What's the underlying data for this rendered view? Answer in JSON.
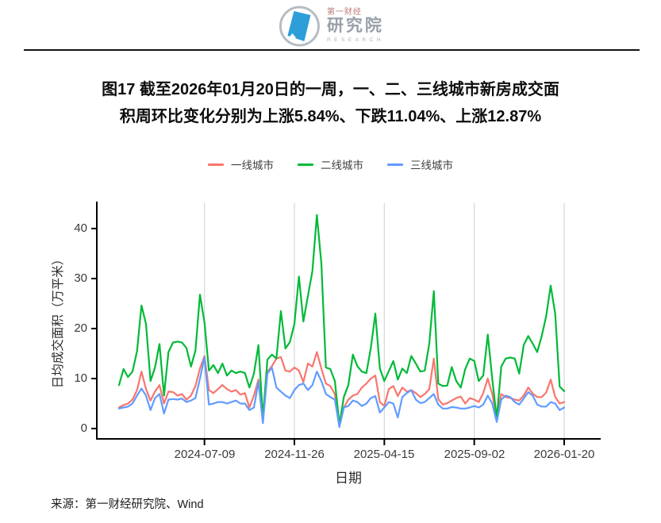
{
  "header": {
    "brand_cn_small": "第一财经",
    "brand_cn_large": "研究院",
    "brand_en": "RESEARCH"
  },
  "title": {
    "line1": "图17 截至2026年01月20日的一周，一、二、三线城市新房成交面",
    "line2": "积周环比变化分别为上涨5.84%、下跌11.04%、上涨12.87%"
  },
  "footer": {
    "source": "来源：第一财经研究院、Wind"
  },
  "chart_data": {
    "type": "line",
    "title": "截至2026年01月20日的一周，一、二、三线城市新房成交面积周环比变化分别为上涨5.84%、下跌11.04%、上涨12.87%",
    "xlabel": "日期",
    "ylabel": "日均成交面积（万平米）",
    "x_unit": "week",
    "x_ticks": [
      "2024-07-09",
      "2024-11-26",
      "2025-04-15",
      "2025-09-02",
      "2026-01-20"
    ],
    "x_tick_indices": [
      19,
      39,
      59,
      79,
      99
    ],
    "y_ticks": [
      0,
      10,
      20,
      30,
      40
    ],
    "ylim": [
      0,
      45
    ],
    "grid": "vertical-only",
    "legend_position": "top",
    "weekly_change": {
      "一线城市": "+5.84%",
      "二线城市": "-11.04%",
      "三线城市": "+12.87%"
    },
    "series": [
      {
        "name": "一线城市",
        "color": "#F8766D",
        "values": [
          4.2,
          4.7,
          5.0,
          5.8,
          7.7,
          11.4,
          7.9,
          5.6,
          7.4,
          8.7,
          5.0,
          7.4,
          7.3,
          6.6,
          6.9,
          5.8,
          6.6,
          8.5,
          12.0,
          14.5,
          7.7,
          7.1,
          7.9,
          8.7,
          7.9,
          7.4,
          7.7,
          6.8,
          7.1,
          4.2,
          6.6,
          9.8,
          1.5,
          11.4,
          12.5,
          14.0,
          14.3,
          11.6,
          11.4,
          12.2,
          11.6,
          9.3,
          13.0,
          12.4,
          15.3,
          12.0,
          9.0,
          8.5,
          6.9,
          0.5,
          4.2,
          5.8,
          6.6,
          6.9,
          8.2,
          9.0,
          10.0,
          10.6,
          5.3,
          4.5,
          7.9,
          8.5,
          6.5,
          8.2,
          7.4,
          7.7,
          7.1,
          6.3,
          6.9,
          7.9,
          14.0,
          5.9,
          4.8,
          5.1,
          5.6,
          6.1,
          6.4,
          5.0,
          6.1,
          5.8,
          5.3,
          7.1,
          10.0,
          6.9,
          2.0,
          6.9,
          6.3,
          6.1,
          5.8,
          5.6,
          6.6,
          8.2,
          7.0,
          6.3,
          6.3,
          7.2,
          9.8,
          6.3,
          5.0,
          5.3
        ]
      },
      {
        "name": "二线城市",
        "color": "#00BA38",
        "values": [
          8.7,
          11.9,
          10.3,
          11.4,
          15.5,
          24.6,
          20.9,
          9.5,
          12.2,
          16.9,
          6.6,
          15.3,
          17.2,
          17.4,
          17.2,
          16.1,
          12.4,
          15.6,
          26.8,
          21.2,
          11.6,
          12.7,
          11.1,
          13.0,
          10.6,
          11.6,
          11.1,
          11.4,
          11.1,
          8.2,
          11.0,
          16.7,
          2.1,
          13.8,
          14.8,
          14.0,
          23.5,
          16.0,
          17.3,
          20.9,
          30.4,
          21.4,
          26.5,
          31.5,
          42.7,
          33.0,
          12.2,
          11.9,
          9.5,
          0.8,
          6.3,
          8.7,
          14.8,
          12.5,
          11.4,
          11.1,
          16.1,
          23.0,
          12.0,
          9.5,
          11.5,
          13.5,
          9.8,
          12.0,
          11.1,
          14.5,
          13.0,
          11.4,
          11.6,
          17.0,
          27.5,
          9.0,
          8.5,
          8.6,
          12.3,
          9.5,
          8.2,
          11.9,
          14.0,
          13.5,
          9.5,
          10.6,
          18.8,
          10.0,
          2.0,
          12.4,
          14.0,
          14.2,
          14.0,
          11.0,
          16.7,
          18.5,
          17.0,
          15.3,
          18.5,
          22.5,
          28.6,
          22.9,
          8.4,
          7.5
        ]
      },
      {
        "name": "三线城市",
        "color": "#619CFF",
        "values": [
          4.0,
          4.2,
          4.4,
          5.0,
          6.6,
          8.0,
          6.6,
          3.7,
          6.1,
          6.9,
          3.0,
          5.8,
          5.9,
          5.8,
          6.0,
          5.3,
          5.6,
          6.1,
          10.0,
          14.2,
          4.8,
          5.0,
          5.3,
          5.3,
          5.0,
          5.3,
          5.6,
          5.0,
          5.0,
          3.7,
          4.2,
          9.3,
          1.1,
          11.0,
          12.2,
          8.2,
          7.4,
          6.6,
          6.1,
          7.7,
          8.7,
          9.0,
          7.7,
          8.7,
          11.4,
          9.5,
          6.9,
          6.3,
          5.8,
          0.3,
          4.2,
          4.5,
          5.6,
          5.3,
          4.5,
          5.0,
          6.1,
          6.5,
          3.2,
          4.2,
          5.3,
          5.0,
          2.2,
          6.3,
          7.1,
          7.7,
          5.8,
          5.1,
          5.3,
          6.1,
          6.9,
          4.8,
          4.0,
          4.0,
          4.3,
          4.2,
          4.0,
          4.0,
          4.2,
          4.5,
          4.2,
          4.8,
          6.6,
          5.0,
          1.3,
          5.8,
          6.6,
          6.3,
          5.3,
          4.8,
          6.0,
          7.3,
          6.6,
          4.8,
          4.4,
          4.4,
          5.3,
          5.0,
          3.7,
          4.2
        ]
      }
    ]
  }
}
